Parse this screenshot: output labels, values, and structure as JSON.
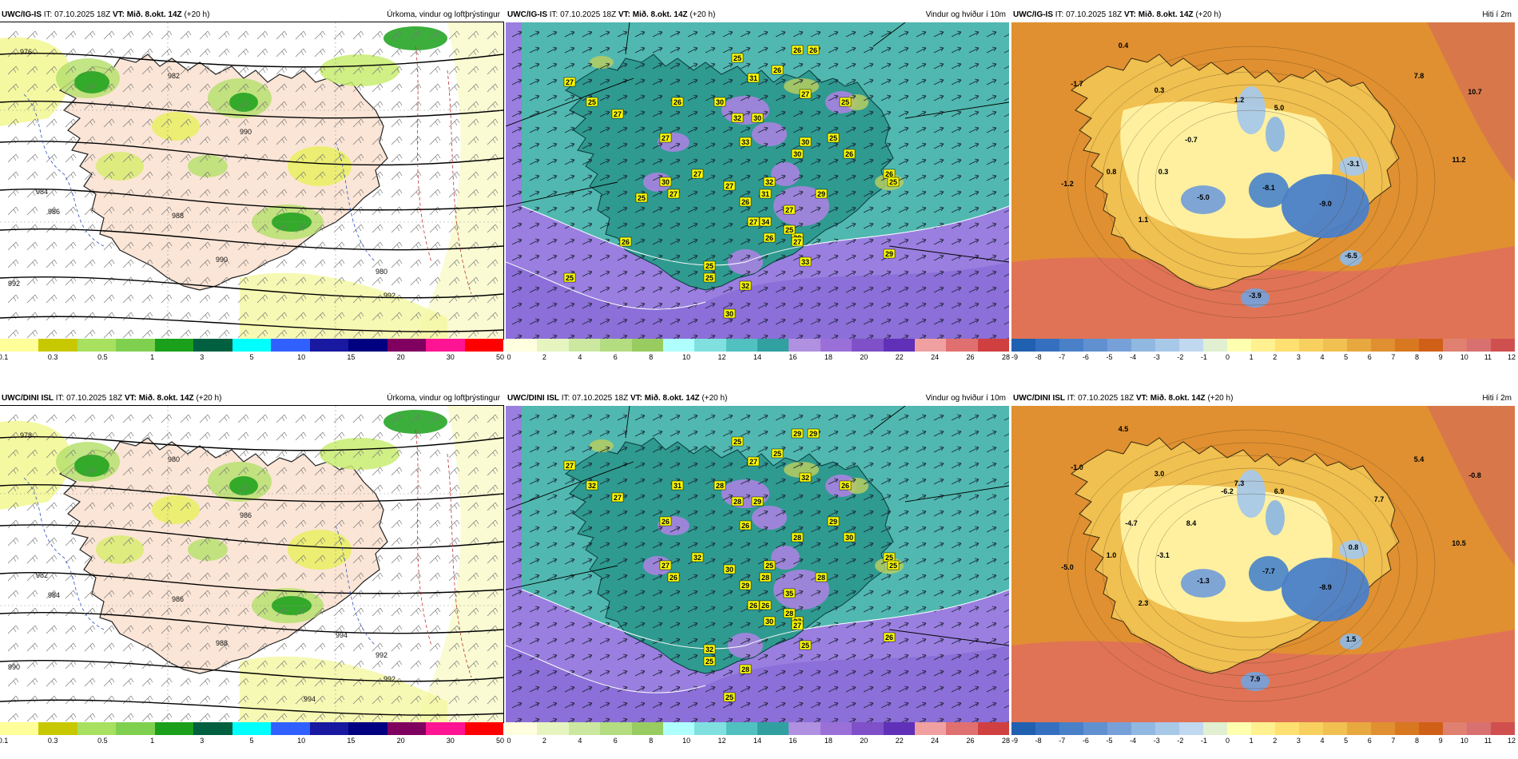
{
  "meta": {
    "it_label": "IT:",
    "vt_label": "VT:",
    "it_value": "07.10.2025 18Z",
    "vt_value": "Mið. 8.okt. 14Z",
    "lead": "(+20 h)"
  },
  "panels": [
    {
      "id": "igis-precip",
      "model": "UWC/IG-IS",
      "title": "Úrkoma, vindur og loftþrýstingur",
      "kind": "precip",
      "colorbar_colors": [
        "#ffff99",
        "#c8c800",
        "#a8e060",
        "#80d050",
        "#1aa01a",
        "#006040",
        "#00ffff",
        "#3060ff",
        "#1818a0",
        "#000080",
        "#800060",
        "#ff1493",
        "#ff0000"
      ],
      "colorbar_ticks": [
        "0.1",
        "0.3",
        "0.5",
        "1",
        "3",
        "5",
        "10",
        "15",
        "20",
        "30",
        "50"
      ],
      "isobars": [
        "976",
        "982",
        "984",
        "986",
        "988",
        "990",
        "990",
        "992",
        "992",
        "980"
      ],
      "labels": []
    },
    {
      "id": "igis-wind",
      "model": "UWC/IG-IS",
      "title": "Vindur og hviður í 10m",
      "kind": "wind",
      "colorbar_colors": [
        "#ffffe0",
        "#e6f5c0",
        "#cce8a0",
        "#b3dd80",
        "#99cc60",
        "#b0ffff",
        "#80e0e0",
        "#50c0c0",
        "#30a0a0",
        "#b090e0",
        "#9a70d8",
        "#7f50c8",
        "#6030b8",
        "#f0a0a0",
        "#e07070",
        "#d04040"
      ],
      "colorbar_ticks": [
        "0",
        "2",
        "4",
        "6",
        "8",
        "10",
        "12",
        "14",
        "16",
        "18",
        "20",
        "22",
        "24",
        "26",
        "28"
      ],
      "gust_labels": [
        "27",
        "25",
        "27",
        "26",
        "25",
        "30",
        "31",
        "32",
        "30",
        "33",
        "26",
        "26",
        "26",
        "27",
        "27",
        "25",
        "25",
        "26",
        "30",
        "27",
        "27",
        "30",
        "27",
        "26",
        "31",
        "34",
        "32",
        "30",
        "25",
        "33",
        "27",
        "29",
        "26",
        "25",
        "27",
        "26",
        "27",
        "32",
        "25",
        "30",
        "25",
        "29",
        "25",
        "25",
        "26",
        "30"
      ],
      "labels": []
    },
    {
      "id": "igis-temp",
      "model": "UWC/IG-IS",
      "title": "Hiti í 2m",
      "kind": "temp",
      "colorbar_colors": [
        "#2060b0",
        "#3570c0",
        "#4a80c8",
        "#6090d0",
        "#78a0d8",
        "#90b8e0",
        "#a8c8e8",
        "#c0d8f0",
        "#e0f0d0",
        "#ffffb0",
        "#fff090",
        "#ffe070",
        "#f8d060",
        "#f0c050",
        "#e8a840",
        "#e09030",
        "#d87820",
        "#d06018",
        "#e08070",
        "#d87070",
        "#d05050"
      ],
      "colorbar_ticks": [
        "-9",
        "-8",
        "-7",
        "-6",
        "-5",
        "-4",
        "-3",
        "-2",
        "-1",
        "0",
        "1",
        "2",
        "3",
        "4",
        "5",
        "6",
        "7",
        "8",
        "9",
        "10",
        "11",
        "12"
      ],
      "temp_labels": [
        "0.4",
        "-1.7",
        "0.3",
        "1.2",
        "5.0",
        "7.8",
        "10.7",
        "-0.7",
        "11.2",
        "0.8",
        "0.3",
        "-3.1",
        "-1.2",
        "-8.1",
        "-5.0",
        "-9.0",
        "1.1",
        "-6.5",
        "-3.9"
      ],
      "labels": []
    },
    {
      "id": "dini-precip",
      "model": "UWC/DINI ISL",
      "title": "Úrkoma, vindur og loftþrýstingur",
      "kind": "precip",
      "colorbar_colors": [
        "#ffff99",
        "#c8c800",
        "#a8e060",
        "#80d050",
        "#1aa01a",
        "#006040",
        "#00ffff",
        "#3060ff",
        "#1818a0",
        "#000080",
        "#800060",
        "#ff1493",
        "#ff0000"
      ],
      "colorbar_ticks": [
        "0.1",
        "0.3",
        "0.5",
        "1",
        "3",
        "5",
        "10",
        "15",
        "20",
        "30",
        "50"
      ],
      "isobars": [
        "978",
        "980",
        "982",
        "984",
        "986",
        "986",
        "988",
        "990",
        "992",
        "992",
        "994",
        "994"
      ],
      "labels": []
    },
    {
      "id": "dini-wind",
      "model": "UWC/DINI ISL",
      "title": "Vindur og hviður í 10m",
      "kind": "wind",
      "colorbar_colors": [
        "#ffffe0",
        "#e6f5c0",
        "#cce8a0",
        "#b3dd80",
        "#99cc60",
        "#b0ffff",
        "#80e0e0",
        "#50c0c0",
        "#30a0a0",
        "#b090e0",
        "#9a70d8",
        "#7f50c8",
        "#6030b8",
        "#f0a0a0",
        "#e07070",
        "#d04040"
      ],
      "colorbar_ticks": [
        "0",
        "2",
        "4",
        "6",
        "8",
        "10",
        "12",
        "14",
        "16",
        "18",
        "20",
        "22",
        "24",
        "26",
        "28"
      ],
      "gust_labels": [
        "27",
        "32",
        "27",
        "31",
        "25",
        "28",
        "27",
        "28",
        "29",
        "26",
        "29",
        "29",
        "25",
        "32",
        "26",
        "26",
        "29",
        "30",
        "28",
        "32",
        "26",
        "27",
        "30",
        "29",
        "28",
        "26",
        "25",
        "27",
        "28",
        "25",
        "35",
        "28",
        "25",
        "25",
        "27",
        "30",
        "26",
        "28",
        "32",
        "25",
        "25",
        "26"
      ],
      "labels": []
    },
    {
      "id": "dini-temp",
      "model": "UWC/DINI ISL",
      "title": "Hiti í 2m",
      "kind": "temp",
      "colorbar_colors": [
        "#2060b0",
        "#3570c0",
        "#4a80c8",
        "#6090d0",
        "#78a0d8",
        "#90b8e0",
        "#a8c8e8",
        "#c0d8f0",
        "#e0f0d0",
        "#ffffb0",
        "#fff090",
        "#ffe070",
        "#f8d060",
        "#f0c050",
        "#e8a840",
        "#e09030",
        "#d87820",
        "#d06018",
        "#e08070",
        "#d87070",
        "#d05050"
      ],
      "colorbar_ticks": [
        "-9",
        "-8",
        "-7",
        "-6",
        "-5",
        "-4",
        "-3",
        "-2",
        "-1",
        "0",
        "1",
        "2",
        "3",
        "4",
        "5",
        "6",
        "7",
        "8",
        "9",
        "10",
        "11",
        "12"
      ],
      "temp_labels": [
        "4.5",
        "-1.0",
        "3.0",
        "7.3",
        "6.9",
        "5.4",
        "-0.8",
        "8.4",
        "10.5",
        "1.0",
        "-3.1",
        "0.8",
        "-5.0",
        "-7.7",
        "-1.3",
        "-8.9",
        "2.3",
        "1.5",
        "7.9",
        "-6.2",
        "7.7",
        "-4.7"
      ],
      "labels": []
    }
  ]
}
